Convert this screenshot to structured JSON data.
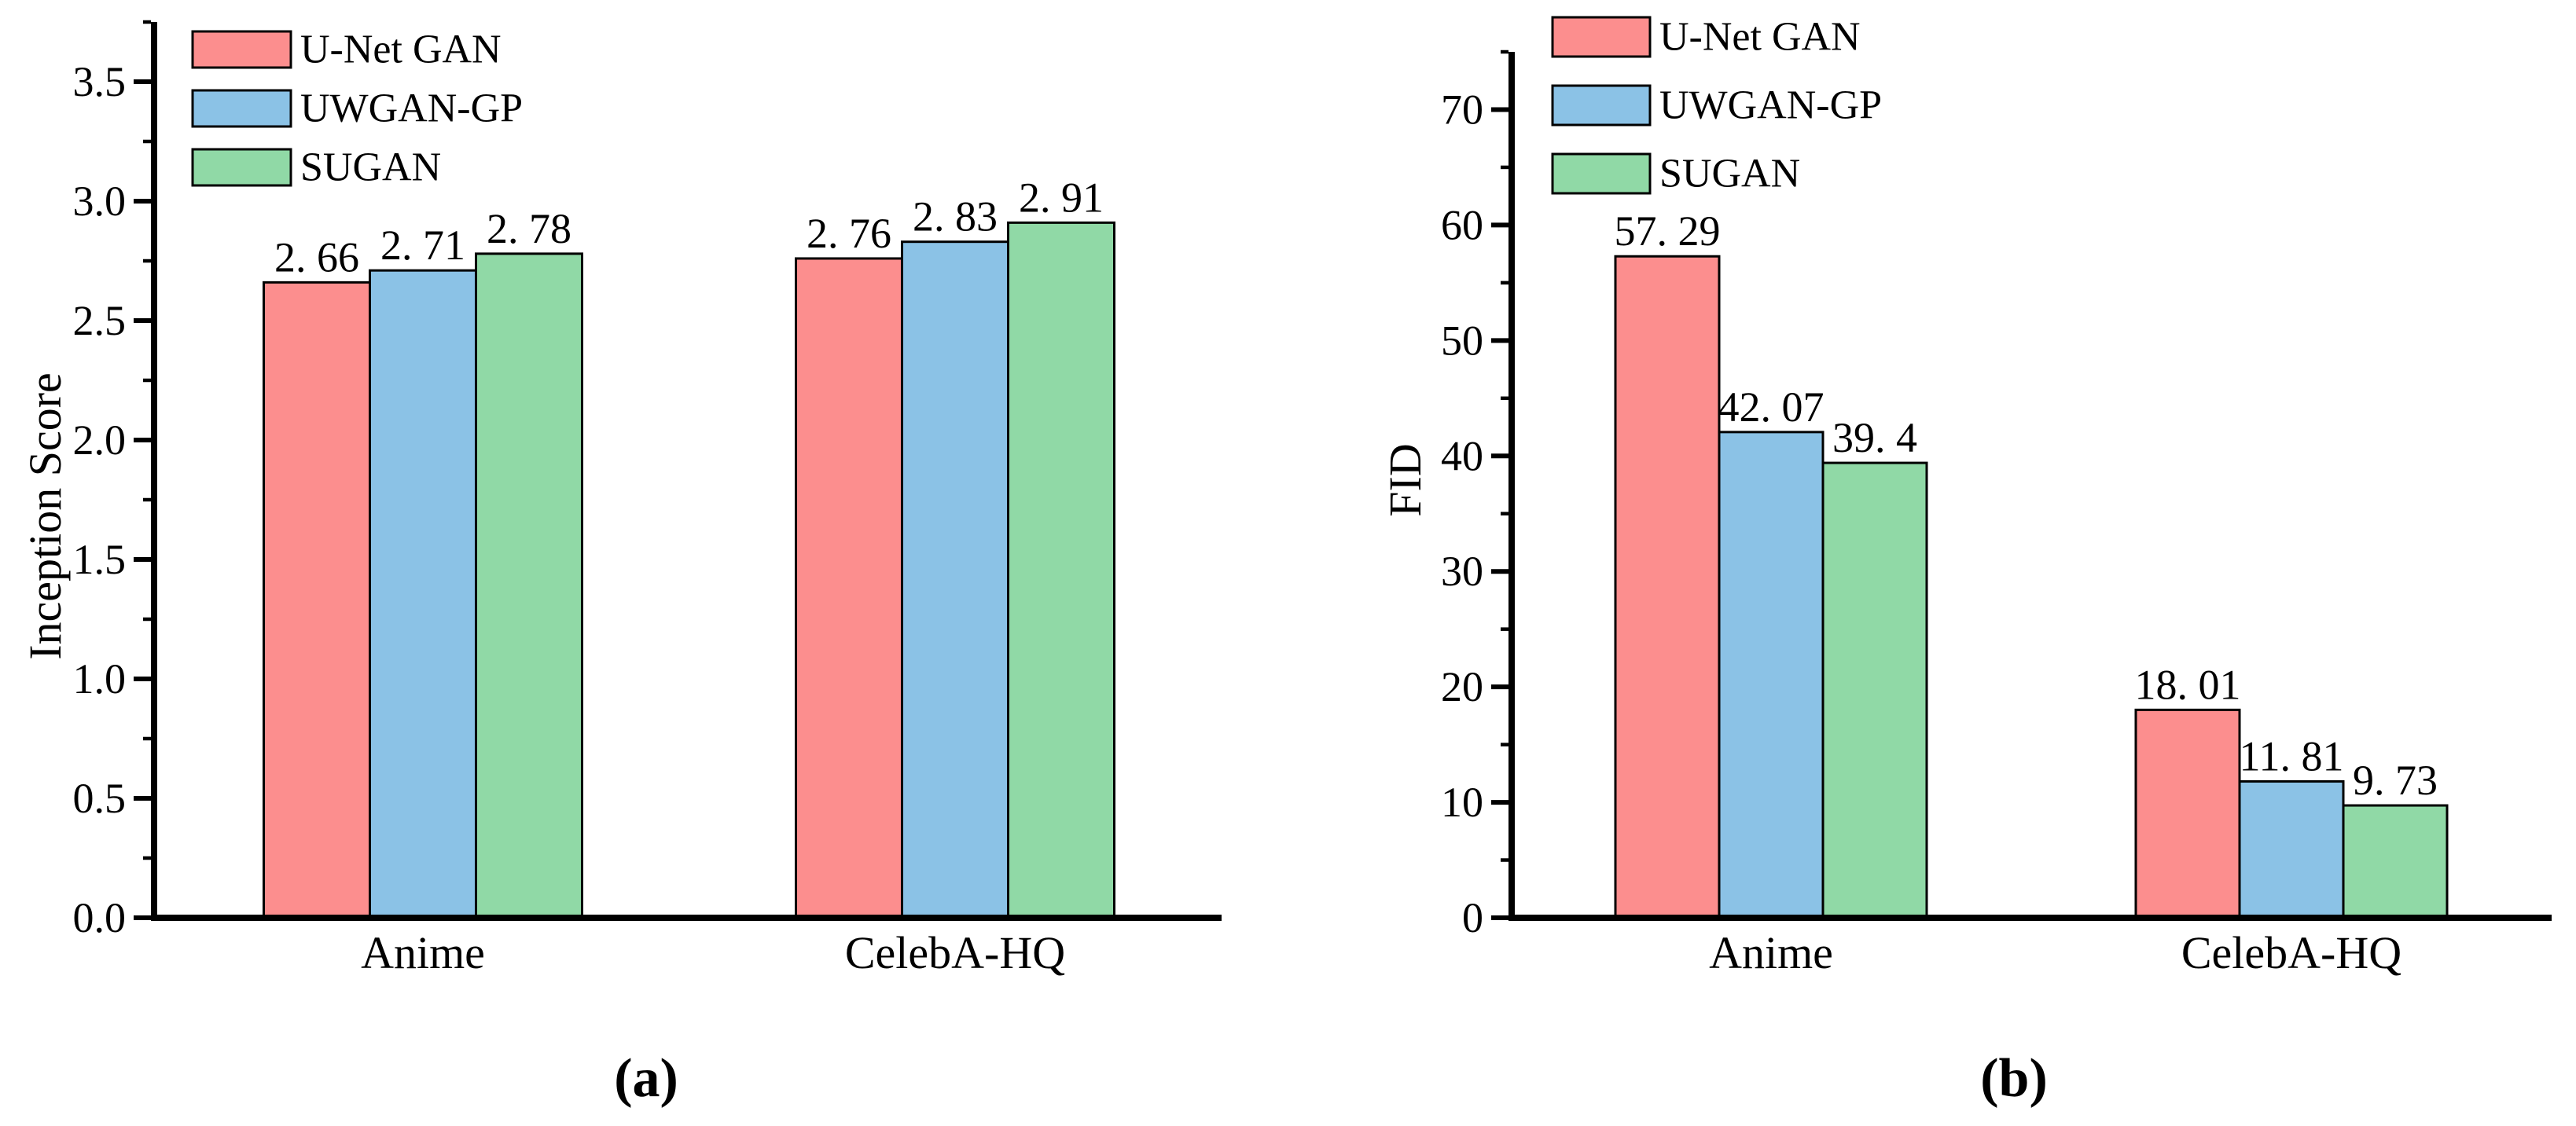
{
  "figure": {
    "background": "#ffffff",
    "text_color": "#000000",
    "bar_outline_color": "#000000"
  },
  "chart_data": [
    {
      "id": "a",
      "type": "bar",
      "title": "",
      "xlabel": "",
      "ylabel": "Inception Score",
      "caption": "(a)",
      "categories": [
        "Anime",
        "CelebA-HQ"
      ],
      "series": [
        {
          "name": "U-Net GAN",
          "color": "#FC8E8E",
          "values": [
            2.66,
            2.76
          ],
          "value_labels": [
            "2. 66",
            "2. 76"
          ]
        },
        {
          "name": "UWGAN-GP",
          "color": "#8BC2E6",
          "values": [
            2.71,
            2.83
          ],
          "value_labels": [
            "2. 71",
            "2. 83"
          ]
        },
        {
          "name": "SUGAN",
          "color": "#90D9A6",
          "values": [
            2.78,
            2.91
          ],
          "value_labels": [
            "2. 78",
            "2. 91"
          ]
        }
      ],
      "ylim": [
        0,
        3.75
      ],
      "y_ticks": {
        "values": [
          0.0,
          0.5,
          1.0,
          1.5,
          2.0,
          2.5,
          3.0,
          3.5
        ],
        "labels": [
          "0.0",
          "0.5",
          "1.0",
          "1.5",
          "2.0",
          "2.5",
          "3.0",
          "3.5"
        ],
        "minor_step": 0.25
      },
      "grid": false,
      "legend_position": "top-left-inside"
    },
    {
      "id": "b",
      "type": "bar",
      "title": "",
      "xlabel": "",
      "ylabel": "FID",
      "caption": "(b)",
      "categories": [
        "Anime",
        "CelebA-HQ"
      ],
      "series": [
        {
          "name": "U-Net GAN",
          "color": "#FC8E8E",
          "values": [
            57.29,
            18.01
          ],
          "value_labels": [
            "57. 29",
            "18. 01"
          ]
        },
        {
          "name": "UWGAN-GP",
          "color": "#8BC2E6",
          "values": [
            42.07,
            11.81
          ],
          "value_labels": [
            "42. 07",
            "11. 81"
          ]
        },
        {
          "name": "SUGAN",
          "color": "#90D9A6",
          "values": [
            39.4,
            9.73
          ],
          "value_labels": [
            "39. 4",
            "9. 73"
          ]
        }
      ],
      "ylim": [
        0,
        75
      ],
      "y_ticks": {
        "values": [
          0,
          10,
          20,
          30,
          40,
          50,
          60,
          70
        ],
        "labels": [
          "0",
          "10",
          "20",
          "30",
          "40",
          "50",
          "60",
          "70"
        ],
        "minor_step": 5
      },
      "grid": false,
      "legend_position": "top-left-inside"
    }
  ]
}
